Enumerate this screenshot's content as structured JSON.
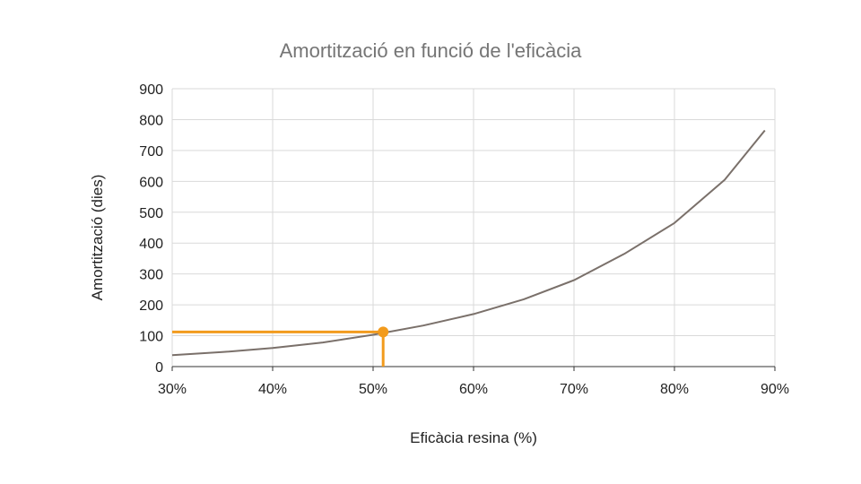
{
  "chart_data": {
    "type": "line",
    "title": "Amortització en funció de l'eficàcia",
    "xlabel": "Eficàcia resina (%)",
    "ylabel": "Amortització (dies)",
    "xlim": [
      0.3,
      0.9
    ],
    "ylim": [
      0,
      900
    ],
    "x_ticks": [
      0.3,
      0.4,
      0.5,
      0.6,
      0.7,
      0.8,
      0.9
    ],
    "x_tick_labels": [
      "30%",
      "40%",
      "50%",
      "60%",
      "70%",
      "80%",
      "90%"
    ],
    "y_ticks": [
      0,
      100,
      200,
      300,
      400,
      500,
      600,
      700,
      800,
      900
    ],
    "y_tick_labels": [
      "0",
      "100",
      "200",
      "300",
      "400",
      "500",
      "600",
      "700",
      "800",
      "900"
    ],
    "grid": true,
    "series": [
      {
        "color": "#7a706a",
        "x": [
          0.3,
          0.35,
          0.4,
          0.45,
          0.5,
          0.55,
          0.6,
          0.65,
          0.7,
          0.75,
          0.8,
          0.85,
          0.89
        ],
        "y": [
          37,
          47,
          60,
          78,
          103,
          133,
          170,
          218,
          280,
          365,
          465,
          605,
          765
        ]
      }
    ],
    "highlight": {
      "color": "#f29b1d",
      "x": 0.51,
      "y": 112
    }
  }
}
